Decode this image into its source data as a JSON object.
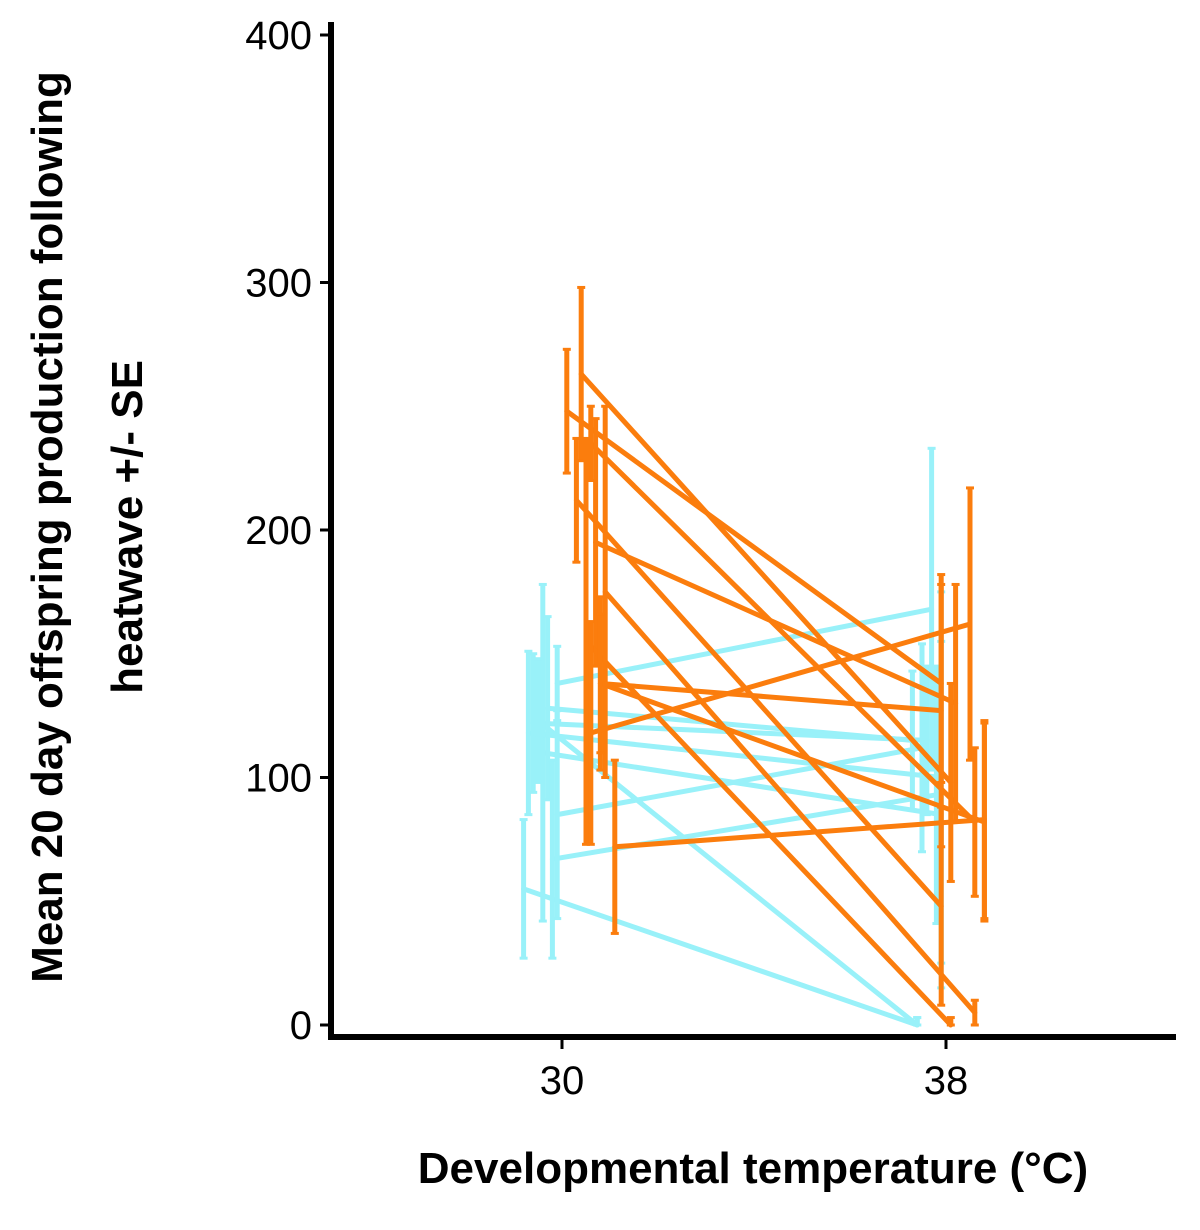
{
  "chart_data": {
    "type": "line",
    "xlabel": "Developmental temperature (°C)",
    "ylabel_line1": "Mean 20 day offspring production following",
    "ylabel_line2": "heatwave +/- SE",
    "x_categories": [
      "30",
      "38"
    ],
    "ylim": [
      0,
      400
    ],
    "yticks": [
      0,
      100,
      200,
      300,
      400
    ],
    "grid": false,
    "legend": "none",
    "colors": {
      "cyan": "#99f1f9",
      "orange": "#fb7d0d"
    },
    "series": [
      {
        "color": "cyan",
        "x": [
          29.2,
          37.4
        ],
        "y": [
          55,
          0
        ],
        "se": [
          28,
          3
        ]
      },
      {
        "color": "cyan",
        "x": [
          29.4,
          37.6
        ],
        "y": [
          122,
          115
        ],
        "se": [
          28,
          30
        ]
      },
      {
        "color": "cyan",
        "x": [
          29.6,
          37.9
        ],
        "y": [
          110,
          85
        ],
        "se": [
          68,
          70
        ]
      },
      {
        "color": "cyan",
        "x": [
          29.7,
          37.3
        ],
        "y": [
          128,
          115
        ],
        "se": [
          37,
          28
        ]
      },
      {
        "color": "cyan",
        "x": [
          29.9,
          37.5
        ],
        "y": [
          85,
          112
        ],
        "se": [
          42,
          42
        ]
      },
      {
        "color": "cyan",
        "x": [
          29.8,
          37.8
        ],
        "y": [
          67,
          93
        ],
        "se": [
          40,
          52
        ]
      },
      {
        "color": "cyan",
        "x": [
          29.5,
          37.4
        ],
        "y": [
          123,
          0
        ],
        "se": [
          25,
          3
        ]
      },
      {
        "color": "cyan",
        "x": [
          29.9,
          37.7
        ],
        "y": [
          138,
          168
        ],
        "se": [
          15,
          65
        ]
      },
      {
        "color": "cyan",
        "x": [
          29.3,
          37.9
        ],
        "y": [
          118,
          100
        ],
        "se": [
          33,
          75
        ]
      },
      {
        "color": "orange",
        "x": [
          30.1,
          37.9
        ],
        "y": [
          248,
          138
        ],
        "se": [
          25,
          40
        ]
      },
      {
        "color": "orange",
        "x": [
          30.4,
          38.1
        ],
        "y": [
          263,
          98
        ],
        "se": [
          35,
          40
        ]
      },
      {
        "color": "orange",
        "x": [
          30.6,
          38.6
        ],
        "y": [
          235,
          82
        ],
        "se": [
          15,
          30
        ]
      },
      {
        "color": "orange",
        "x": [
          30.3,
          37.9
        ],
        "y": [
          212,
          48
        ],
        "se": [
          25,
          40
        ]
      },
      {
        "color": "orange",
        "x": [
          30.7,
          38.2
        ],
        "y": [
          195,
          130
        ],
        "se": [
          50,
          48
        ]
      },
      {
        "color": "orange",
        "x": [
          30.8,
          38.8
        ],
        "y": [
          138,
          82
        ],
        "se": [
          35,
          40
        ]
      },
      {
        "color": "orange",
        "x": [
          30.9,
          38.6
        ],
        "y": [
          175,
          5
        ],
        "se": [
          75,
          5
        ]
      },
      {
        "color": "orange",
        "x": [
          30.5,
          38.1
        ],
        "y": [
          155,
          0
        ],
        "se": [
          82,
          3
        ]
      },
      {
        "color": "orange",
        "x": [
          30.8,
          37.9
        ],
        "y": [
          138,
          127
        ],
        "se": [
          28,
          55
        ]
      },
      {
        "color": "orange",
        "x": [
          30.6,
          38.5
        ],
        "y": [
          118,
          162
        ],
        "se": [
          45,
          55
        ]
      },
      {
        "color": "orange",
        "x": [
          31.1,
          38.8
        ],
        "y": [
          72,
          83
        ],
        "se": [
          35,
          40
        ]
      }
    ]
  }
}
